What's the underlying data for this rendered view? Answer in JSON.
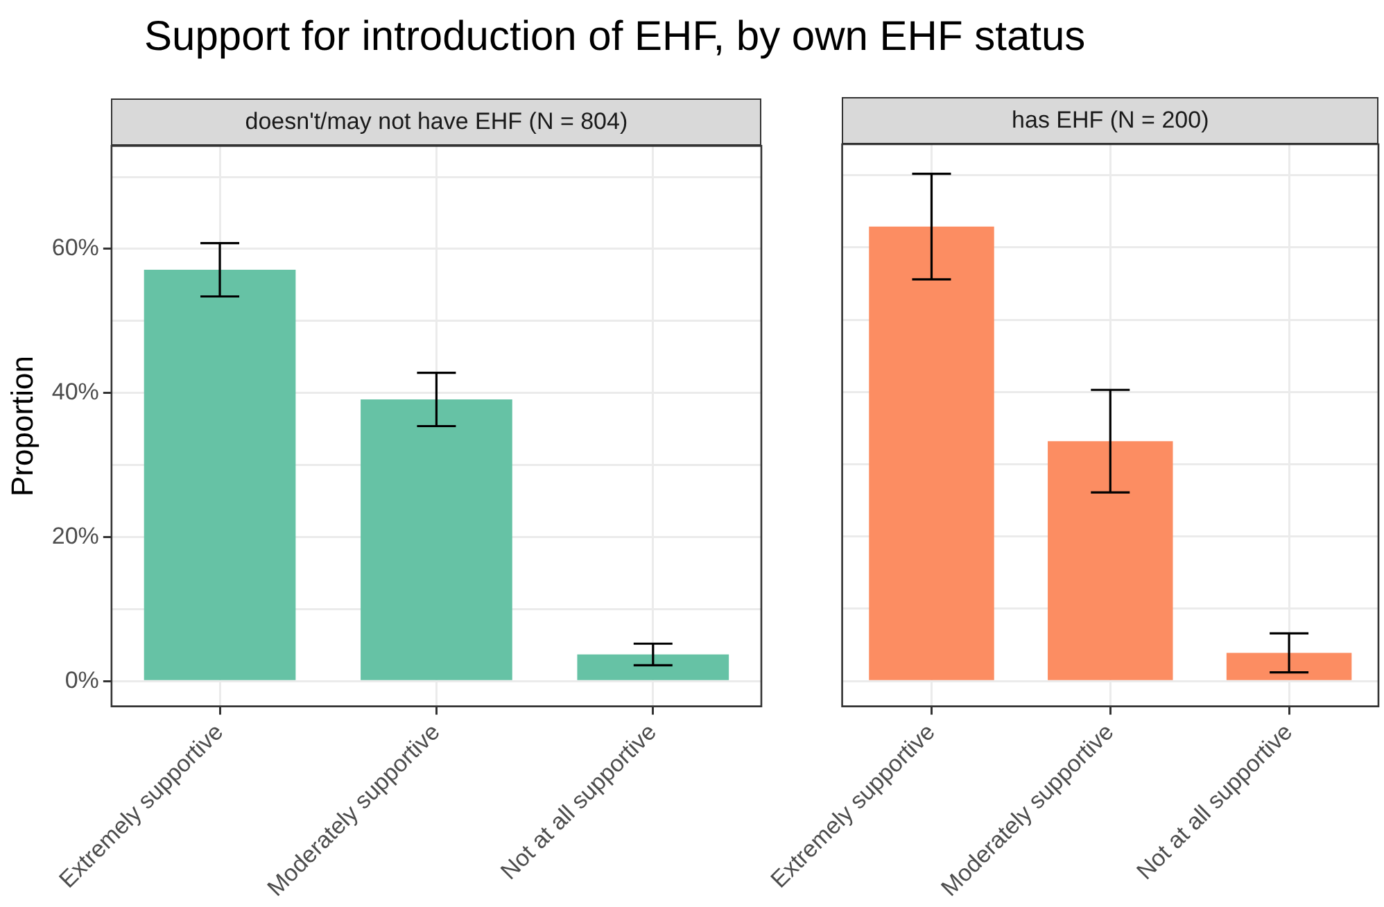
{
  "chart_data": [
    {
      "type": "bar",
      "title": "Support for introduction of EHF, by own EHF status",
      "subtitle": "doesn't/may not have EHF (N = 804)",
      "ylabel": "Proportion",
      "categories": [
        "Extremely supportive",
        "Moderately supportive",
        "Not at all supportive"
      ],
      "series": [
        {
          "color": "#66c2a5",
          "values": [
            57.1,
            39.1,
            3.7
          ],
          "errors": [
            3.7,
            3.7,
            1.5
          ]
        }
      ],
      "ylim": [
        -3.5,
        74.3
      ],
      "yticks": [
        {
          "value": 0,
          "label": "0%"
        },
        {
          "value": 10,
          "label": null
        },
        {
          "value": 20,
          "label": "20%"
        },
        {
          "value": 30,
          "label": null
        },
        {
          "value": 40,
          "label": "40%"
        },
        {
          "value": 50,
          "label": null
        },
        {
          "value": 60,
          "label": "60%"
        },
        {
          "value": 70,
          "label": null
        }
      ],
      "grid": true,
      "legend": false
    },
    {
      "type": "bar",
      "subtitle": "has EHF (N = 200)",
      "categories": [
        "Extremely supportive",
        "Moderately supportive",
        "Not at all supportive"
      ],
      "series": [
        {
          "color": "#fc8d62",
          "values": [
            62.9,
            33.2,
            3.9
          ],
          "errors": [
            7.3,
            7.1,
            2.7
          ]
        }
      ],
      "ylim": [
        -3.5,
        74.3
      ],
      "yticks": [
        {
          "value": 0,
          "label": null
        },
        {
          "value": 10,
          "label": null
        },
        {
          "value": 20,
          "label": null
        },
        {
          "value": 30,
          "label": null
        },
        {
          "value": 40,
          "label": null
        },
        {
          "value": 50,
          "label": null
        },
        {
          "value": 60,
          "label": null
        },
        {
          "value": 70,
          "label": null
        }
      ],
      "grid": true,
      "legend": false,
      "tick_labels": "x"
    }
  ]
}
